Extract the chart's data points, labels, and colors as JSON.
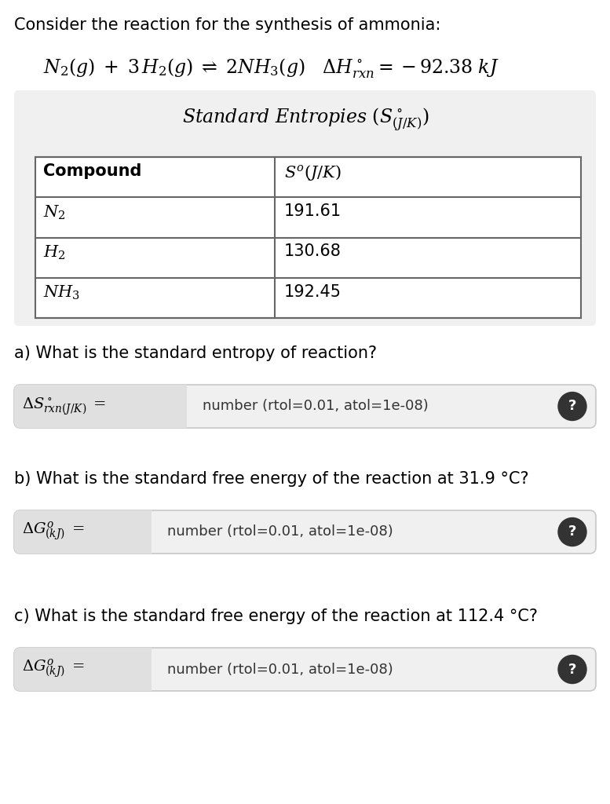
{
  "bg_color": "#ffffff",
  "intro_text": "Consider the reaction for the synthesis of ammonia:",
  "table_title": "Standard Entropies ",
  "table_header_col1": "Compound",
  "table_header_col2": "$S^{o}(J/K)$",
  "compounds": [
    "$N_2$",
    "$H_2$",
    "$NH_3$"
  ],
  "values": [
    "191.61",
    "130.68",
    "192.45"
  ],
  "part_a_text": "a) What is the standard entropy of reaction?",
  "part_b_text": "b) What is the standard free energy of the reaction at 31.9 °C?",
  "part_c_text": "c) What is the standard free energy of the reaction at 112.4 °C?",
  "input_placeholder": "number (rtol=0.01, atol=1e-08)",
  "light_gray": "#f0f0f0",
  "medium_gray": "#c8c8c8",
  "label_bg": "#e0e0e0",
  "table_border": "#666666",
  "dark_text": "#333333",
  "circle_bg": "#333333"
}
